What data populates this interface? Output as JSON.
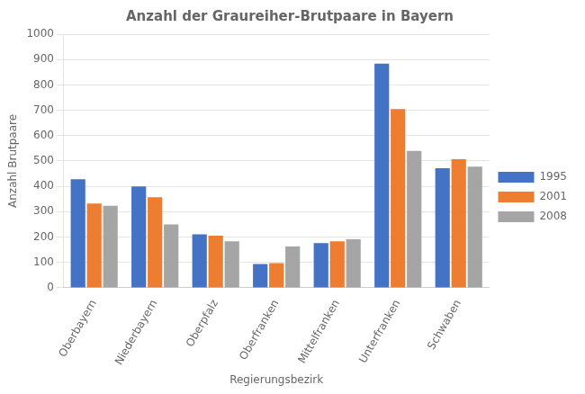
{
  "chart_data": {
    "type": "bar",
    "title": "Anzahl der Graureiher-Brutpaare in Bayern",
    "xlabel": "Regierungsbezirk",
    "ylabel": "Anzahl Brutpaare",
    "categories": [
      "Oberbayern",
      "Niederbayern",
      "Oberpfalz",
      "Oberfranken",
      "Mittelfranken",
      "Unterfranken",
      "Schwaben"
    ],
    "series": [
      {
        "name": "1995",
        "color": "#4472C4",
        "values": [
          428,
          400,
          211,
          94,
          176,
          884,
          471
        ]
      },
      {
        "name": "2001",
        "color": "#ED7D31",
        "values": [
          332,
          357,
          205,
          97,
          183,
          705,
          507
        ]
      },
      {
        "name": "2008",
        "color": "#A5A5A5",
        "values": [
          323,
          250,
          183,
          163,
          191,
          540,
          478
        ]
      }
    ],
    "ylim": [
      0,
      1000
    ],
    "yticks": [
      0,
      100,
      200,
      300,
      400,
      500,
      600,
      700,
      800,
      900,
      1000
    ],
    "grid": true,
    "legend": "right"
  }
}
